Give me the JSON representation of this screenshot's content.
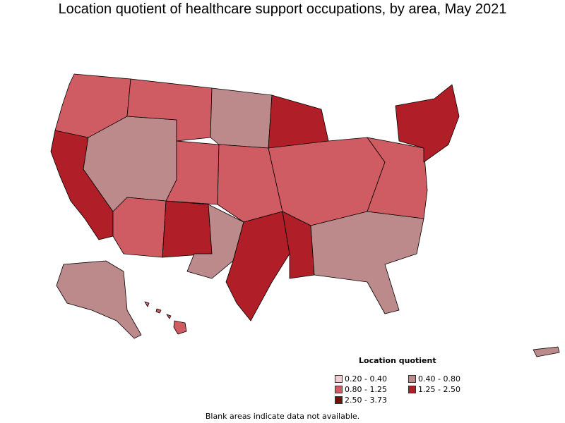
{
  "title": "Location quotient of healthcare support occupations, by area, May 2021",
  "legend": {
    "title": "Location quotient",
    "items": [
      {
        "label": "0.20 - 0.40",
        "color": "#f4cdd0"
      },
      {
        "label": "0.40 - 0.80",
        "color": "#bd8a8c"
      },
      {
        "label": "0.80 - 1.25",
        "color": "#d05c63"
      },
      {
        "label": "1.25 - 2.50",
        "color": "#b01f27"
      },
      {
        "label": "2.50 - 3.73",
        "color": "#7a0a0e"
      }
    ]
  },
  "footnote": "Blank areas indicate data not available.",
  "map": {
    "regions": [
      {
        "name": "pacific-northwest",
        "class": "0.80 - 1.25"
      },
      {
        "name": "california-coast",
        "class": "1.25 - 2.50"
      },
      {
        "name": "nevada-utah",
        "class": "0.40 - 0.80"
      },
      {
        "name": "mountain-north",
        "class": "0.80 - 1.25"
      },
      {
        "name": "southwest-nm",
        "class": "1.25 - 2.50"
      },
      {
        "name": "texas-west",
        "class": "0.40 - 0.80"
      },
      {
        "name": "texas-gulf",
        "class": "1.25 - 2.50"
      },
      {
        "name": "plains",
        "class": "0.80 - 1.25"
      },
      {
        "name": "north-plains",
        "class": "0.40 - 0.80"
      },
      {
        "name": "upper-midwest",
        "class": "1.25 - 2.50"
      },
      {
        "name": "midwest",
        "class": "0.80 - 1.25"
      },
      {
        "name": "southeast",
        "class": "0.40 - 0.80"
      },
      {
        "name": "northeast",
        "class": "1.25 - 2.50"
      },
      {
        "name": "alaska",
        "class": "0.40 - 0.80"
      },
      {
        "name": "hawaii",
        "class": "0.80 - 1.25"
      },
      {
        "name": "puerto-rico",
        "class": "0.40 - 0.80"
      }
    ]
  }
}
